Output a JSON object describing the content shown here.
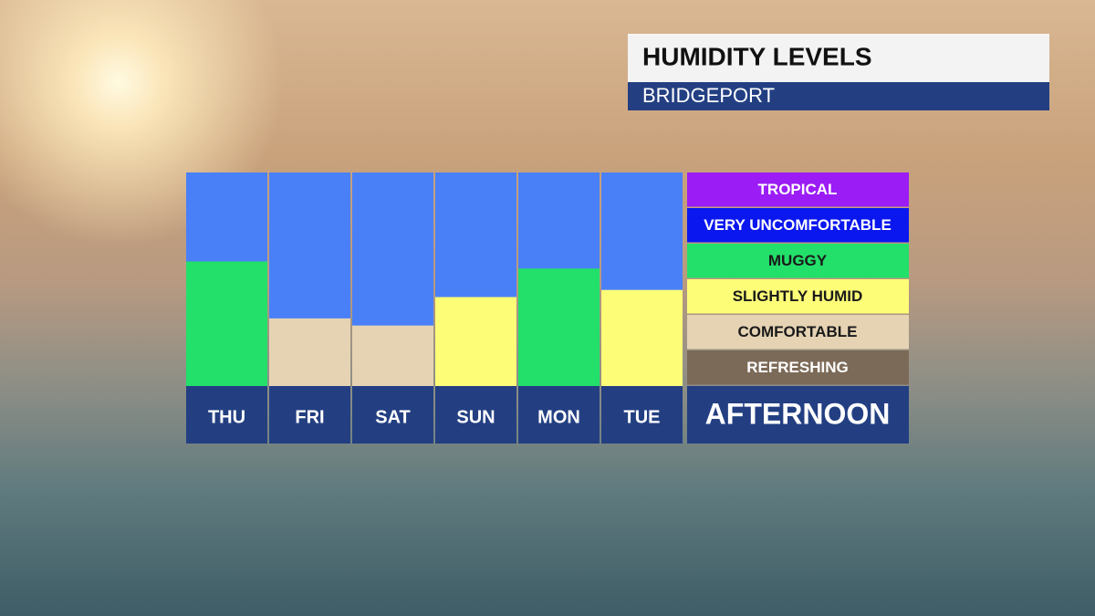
{
  "chart_data": {
    "type": "bar",
    "title": "HUMIDITY LEVELS",
    "location": "BRIDGEPORT",
    "period_label": "AFTERNOON",
    "categories": [
      "THU",
      "FRI",
      "SAT",
      "SUN",
      "MON",
      "TUE"
    ],
    "values": [
      3.5,
      1.9,
      1.7,
      2.5,
      3.3,
      2.7
    ],
    "ylim": [
      0,
      6
    ],
    "background_color": "#4a80f7",
    "levels": [
      {
        "name": "TROPICAL",
        "color": "#9b1cf5",
        "text_color": "#ffffff"
      },
      {
        "name": "VERY UNCOMFORTABLE",
        "color": "#0a17ee",
        "text_color": "#ffffff"
      },
      {
        "name": "MUGGY",
        "color": "#22e06a",
        "text_color": "#1a1a1a"
      },
      {
        "name": "SLIGHTLY HUMID",
        "color": "#fdfd78",
        "text_color": "#1a1a1a"
      },
      {
        "name": "COMFORTABLE",
        "color": "#e5d3b3",
        "text_color": "#1a1a1a"
      },
      {
        "name": "REFRESHING",
        "color": "#7c6a58",
        "text_color": "#ffffff"
      }
    ]
  }
}
